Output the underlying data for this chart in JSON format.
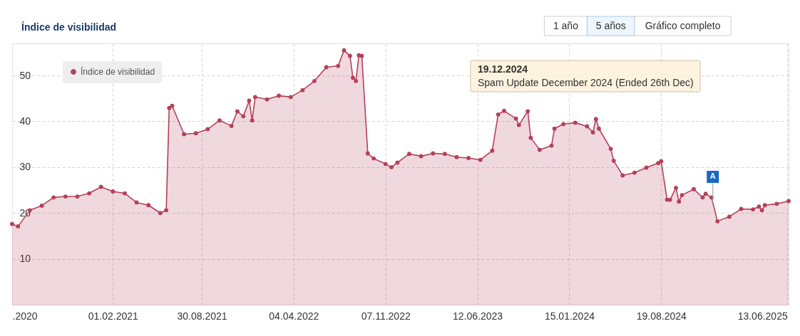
{
  "chart_data": {
    "type": "area",
    "title": "Índice de visibilidad",
    "legend": "top left",
    "grid": true,
    "marker": "circle",
    "xlim": [
      "2020-06-08",
      "2025-06-16"
    ],
    "xticks": [
      {
        "value": "2020-06-08",
        "label": ".2020"
      },
      {
        "value": "2021-02-01",
        "label": "01.02.2021"
      },
      {
        "value": "2021-08-30",
        "label": "30.08.2021"
      },
      {
        "value": "2022-04-04",
        "label": "04.04.2022"
      },
      {
        "value": "2022-11-07",
        "label": "07.11.2022"
      },
      {
        "value": "2023-06-12",
        "label": "12.06.2023"
      },
      {
        "value": "2024-01-15",
        "label": "15.01.2024"
      },
      {
        "value": "2024-08-19",
        "label": "19.08.2024"
      },
      {
        "value": "2025-06-13",
        "label": "13.06.2025"
      }
    ],
    "ylim": [
      0,
      57
    ],
    "yticks": [
      10,
      20,
      30,
      40,
      50
    ],
    "x": [
      "2020-06-08",
      "2020-06-22",
      "2020-07-20",
      "2020-08-17",
      "2020-09-14",
      "2020-10-12",
      "2020-11-09",
      "2020-12-07",
      "2021-01-04",
      "2021-02-01",
      "2021-03-01",
      "2021-03-29",
      "2021-04-26",
      "2021-05-24",
      "2021-06-07",
      "2021-06-14",
      "2021-06-21",
      "2021-07-19",
      "2021-08-16",
      "2021-09-13",
      "2021-10-11",
      "2021-11-08",
      "2021-11-22",
      "2021-12-06",
      "2021-12-20",
      "2021-12-27",
      "2022-01-03",
      "2022-01-31",
      "2022-02-28",
      "2022-03-28",
      "2022-04-25",
      "2022-05-23",
      "2022-06-20",
      "2022-07-18",
      "2022-08-01",
      "2022-08-15",
      "2022-08-22",
      "2022-08-29",
      "2022-09-05",
      "2022-09-12",
      "2022-09-26",
      "2022-10-10",
      "2022-11-07",
      "2022-11-21",
      "2022-12-05",
      "2023-01-02",
      "2023-01-30",
      "2023-02-27",
      "2023-03-27",
      "2023-04-24",
      "2023-05-22",
      "2023-06-19",
      "2023-07-17",
      "2023-07-31",
      "2023-08-14",
      "2023-09-11",
      "2023-09-18",
      "2023-10-09",
      "2023-10-16",
      "2023-11-06",
      "2023-12-04",
      "2023-12-11",
      "2024-01-01",
      "2024-01-29",
      "2024-02-26",
      "2024-03-11",
      "2024-03-18",
      "2024-03-25",
      "2024-04-22",
      "2024-04-29",
      "2024-05-20",
      "2024-06-17",
      "2024-07-15",
      "2024-08-12",
      "2024-08-19",
      "2024-09-02",
      "2024-09-09",
      "2024-09-23",
      "2024-09-30",
      "2024-10-07",
      "2024-11-04",
      "2024-11-25",
      "2024-12-02",
      "2024-12-16",
      "2024-12-30",
      "2025-01-27",
      "2025-02-24",
      "2025-03-24",
      "2025-04-07",
      "2025-04-14",
      "2025-04-21",
      "2025-05-19",
      "2025-06-16"
    ],
    "series": [
      {
        "name": "Índice de visibilidad",
        "color": "#b5405a",
        "values": [
          17.6,
          17.1,
          20.6,
          21.6,
          23.4,
          23.6,
          23.6,
          24.3,
          25.7,
          24.7,
          24.3,
          22.3,
          21.7,
          20.0,
          20.6,
          42.9,
          43.4,
          37.2,
          37.4,
          38.3,
          40.2,
          39.0,
          42.2,
          41.1,
          44.5,
          40.2,
          45.3,
          44.8,
          45.6,
          45.3,
          46.8,
          48.8,
          51.8,
          52.1,
          55.5,
          54.3,
          49.5,
          48.8,
          54.4,
          54.3,
          33.0,
          31.9,
          30.7,
          30.0,
          31.0,
          32.9,
          32.4,
          33.0,
          32.9,
          32.2,
          32.0,
          31.6,
          33.6,
          41.5,
          42.3,
          40.6,
          39.2,
          42.2,
          36.4,
          33.8,
          34.7,
          38.4,
          39.4,
          39.7,
          38.9,
          37.6,
          40.5,
          38.4,
          34.0,
          31.4,
          28.2,
          28.8,
          29.9,
          30.9,
          31.3,
          22.9,
          22.9,
          25.5,
          22.5,
          23.9,
          25.2,
          23.4,
          24.2,
          23.4,
          18.2,
          19.2,
          20.9,
          20.8,
          21.4,
          20.6,
          21.7,
          22.0,
          22.6
        ]
      }
    ],
    "annotations": [
      {
        "text": "A",
        "x": "2024-12-19",
        "y": 22.3
      },
      "19.12.2024",
      "Spam Update December 2024 (Ended 26th Dec)",
      "1 año",
      "5 años",
      "Gráfico completo"
    ]
  }
}
